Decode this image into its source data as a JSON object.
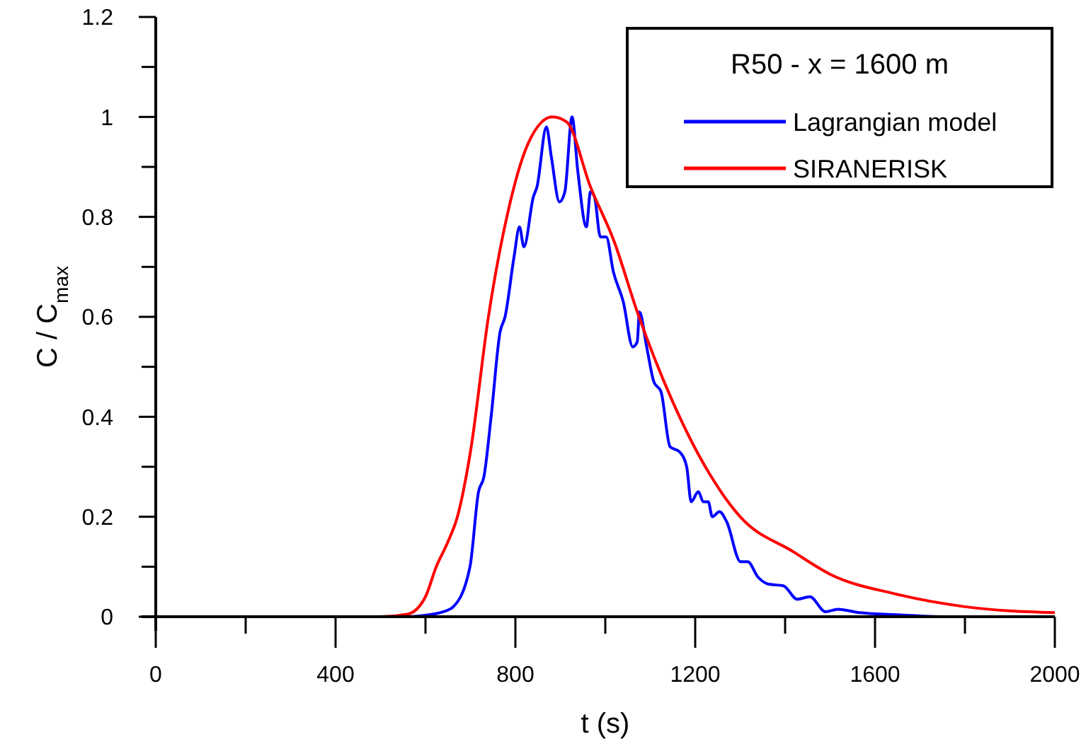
{
  "chart_data": {
    "type": "line",
    "xlabel": "t (s)",
    "ylabel": "C / C$_{max}$",
    "legend_title": "R50 - x = 1600 m",
    "legend": "top right",
    "line_style": "solid",
    "marker": "none",
    "grid": false,
    "xlim": [
      0,
      2000
    ],
    "ylim": [
      0,
      1.2
    ],
    "xticks": [
      0,
      {
        "value": 200,
        "label": null
      },
      400,
      {
        "value": 600,
        "label": null
      },
      800,
      {
        "value": 1000,
        "label": null
      },
      1200,
      {
        "value": 1400,
        "label": null
      },
      1600,
      {
        "value": 1800,
        "label": null
      },
      2000
    ],
    "yticks": [
      0,
      {
        "value": 0.1,
        "label": null
      },
      0.2,
      {
        "value": 0.3,
        "label": null
      },
      0.4,
      {
        "value": 0.5,
        "label": null
      },
      0.6,
      {
        "value": 0.7,
        "label": null
      },
      0.8,
      {
        "value": 0.9,
        "label": null
      },
      1,
      {
        "value": 1.1,
        "label": null
      },
      1.2
    ],
    "series": [
      {
        "name": "Lagrangian model",
        "color": "#0000ff",
        "x": [
          557,
          600,
          640,
          662,
          699,
          718,
          730,
          746,
          766,
          777,
          797,
          809,
          819,
          840,
          848,
          869,
          880,
          898,
          910,
          926,
          939,
          958,
          967,
          976,
          989,
          1002,
          1018,
          1040,
          1061,
          1071,
          1076,
          1092,
          1108,
          1124,
          1144,
          1165,
          1181,
          1191,
          1207,
          1218,
          1229,
          1238,
          1254,
          1270,
          1301,
          1317,
          1339,
          1364,
          1396,
          1427,
          1455,
          1490,
          1518,
          1565,
          1648,
          1690,
          1754,
          1995
        ],
        "values": [
          0,
          0.003,
          0.01,
          0.02,
          0.1,
          0.25,
          0.28,
          0.4,
          0.57,
          0.6,
          0.72,
          0.78,
          0.74,
          0.84,
          0.86,
          0.98,
          0.92,
          0.83,
          0.85,
          1,
          0.89,
          0.78,
          0.85,
          0.84,
          0.76,
          0.76,
          0.69,
          0.63,
          0.54,
          0.55,
          0.61,
          0.54,
          0.47,
          0.45,
          0.34,
          0.33,
          0.3,
          0.23,
          0.25,
          0.23,
          0.23,
          0.2,
          0.21,
          0.19,
          0.11,
          0.11,
          0.08,
          0.065,
          0.062,
          0.035,
          0.04,
          0.01,
          0.015,
          0.008,
          0.004,
          0.002,
          0,
          0
        ]
      },
      {
        "name": "SIRANERISK",
        "color": "#ff0000",
        "x": [
          70,
          300,
          500,
          560,
          600,
          624,
          650,
          671,
          700,
          740,
          781,
          830,
          882,
          914,
          967,
          1020,
          1071,
          1150,
          1229,
          1300,
          1418,
          1500,
          1648,
          1800,
          2000
        ],
        "values": [
          0,
          0,
          0,
          0.005,
          0.04,
          0.1,
          0.15,
          0.2,
          0.33,
          0.6,
          0.8,
          0.95,
          1,
          0.99,
          0.86,
          0.75,
          0.61,
          0.43,
          0.29,
          0.2,
          0.13,
          0.085,
          0.045,
          0.02,
          0.008
        ]
      }
    ]
  }
}
